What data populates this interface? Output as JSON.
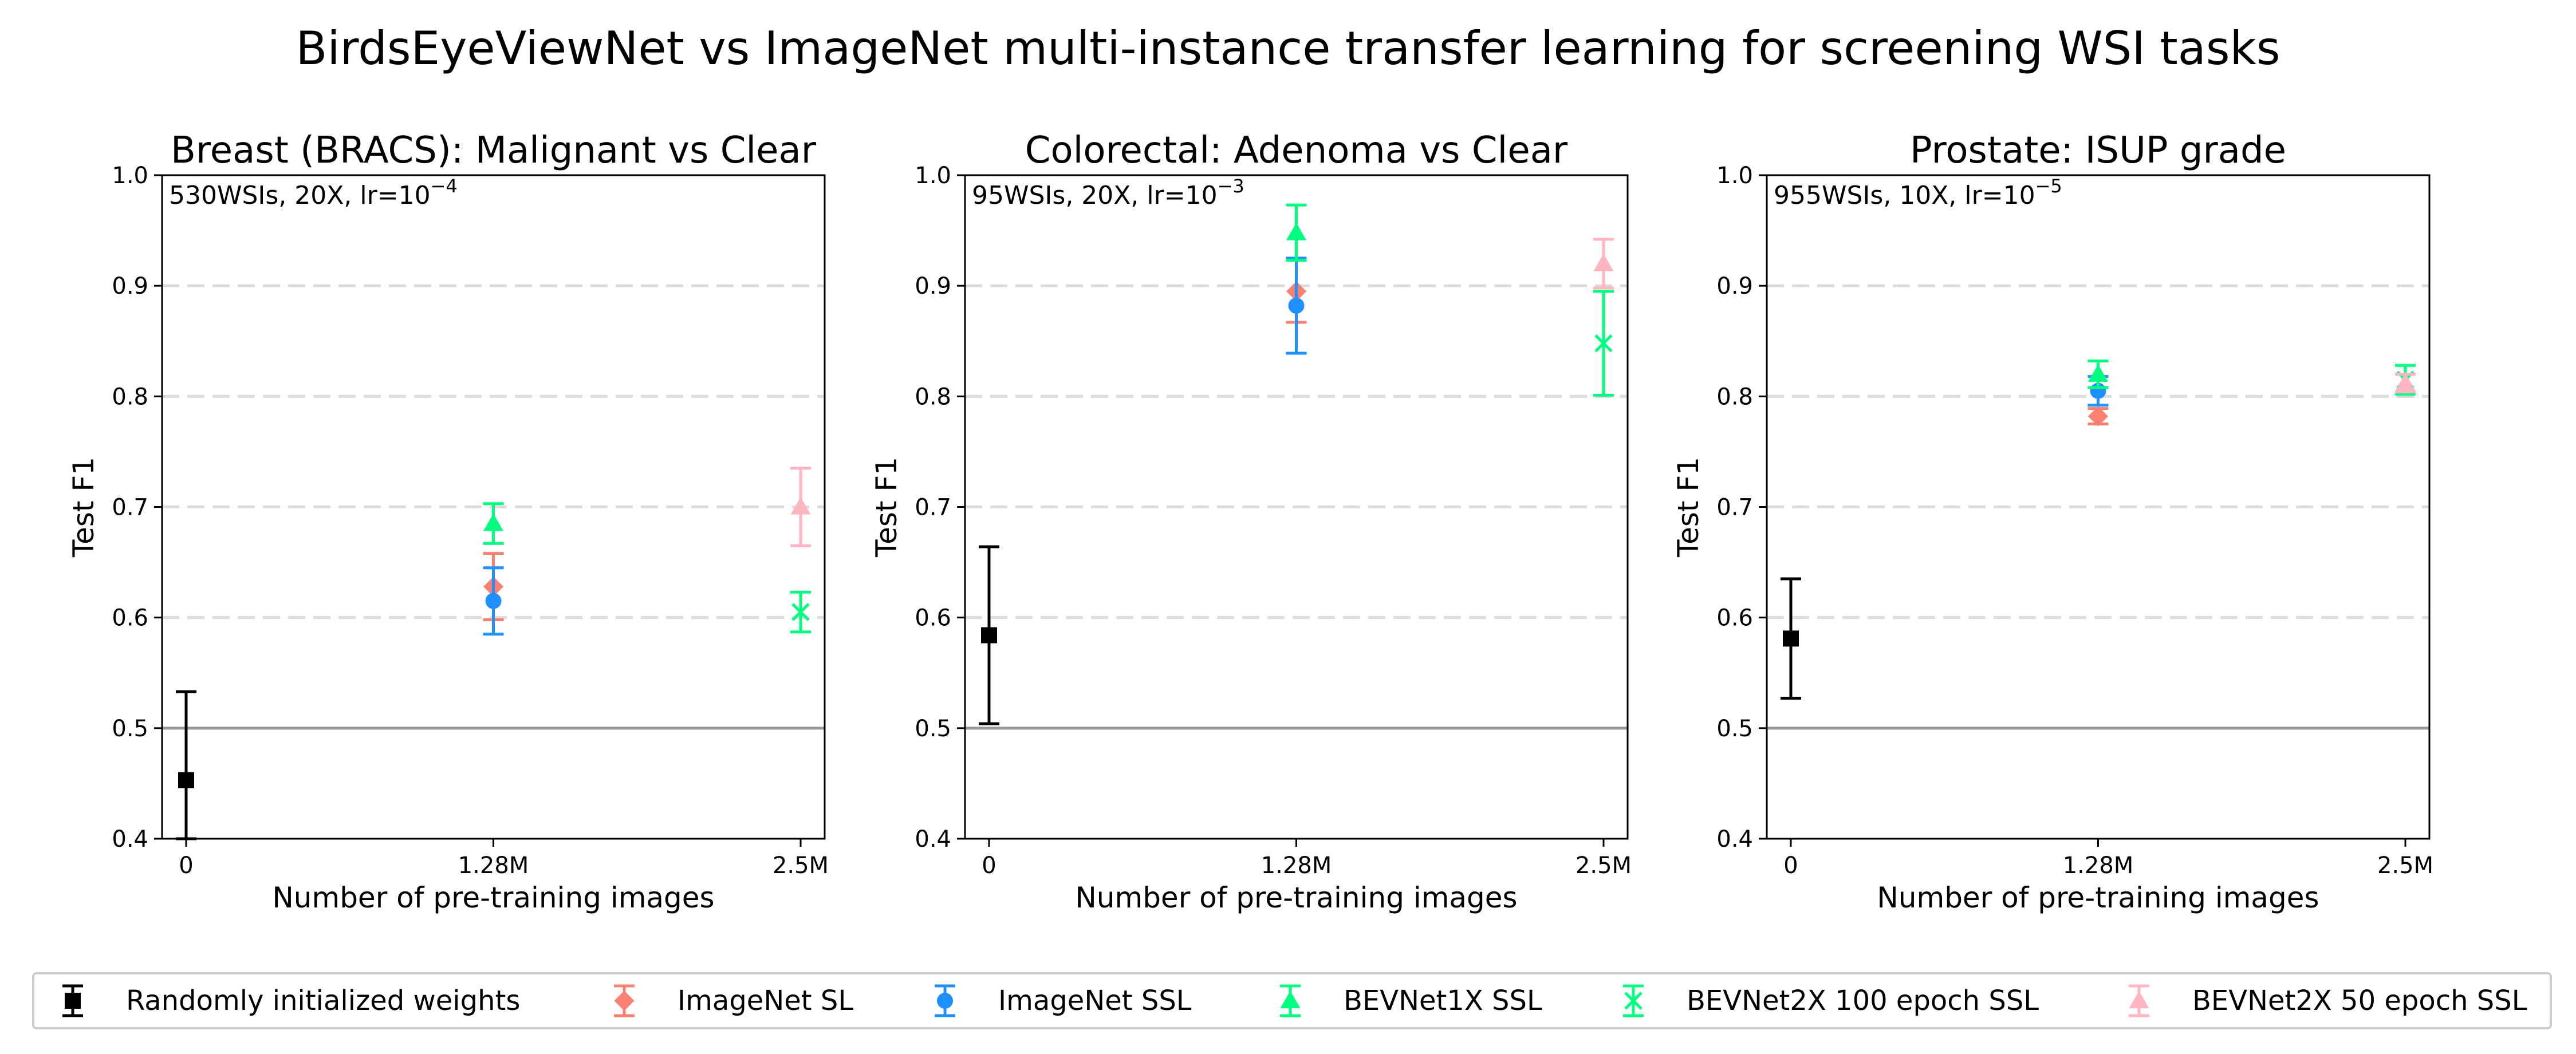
{
  "title": "BirdsEyeViewNet vs ImageNet multi-instance transfer learning for screening WSI tasks",
  "series_styles": [
    {
      "name": "Randomly initialized weights",
      "color": "#000000",
      "marker": "square"
    },
    {
      "name": "ImageNet SL",
      "color": "#fa8072",
      "marker": "diamond"
    },
    {
      "name": "ImageNet SSL",
      "color": "#1e90ff",
      "marker": "circle"
    },
    {
      "name": "BEVNet1X SSL",
      "color": "#00ff7f",
      "marker": "triangle"
    },
    {
      "name": "BEVNet2X 100 epoch SSL",
      "color": "#00ff7f",
      "marker": "x"
    },
    {
      "name": "BEVNet2X 50 epoch SSL",
      "color": "#ffb6c1",
      "marker": "triangle"
    }
  ],
  "chart_data": [
    {
      "type": "scatter",
      "title": "Breast (BRACS): Malignant vs Clear",
      "annotation": {
        "prefix": "530WSIs, 20X, lr=10",
        "exponent": "−4"
      },
      "xlabel": "Number of pre-training images",
      "ylabel": "Test F1",
      "xticks": [
        "0",
        "1.28M",
        "2.5M"
      ],
      "yticks": [
        "0.4",
        "0.5",
        "0.6",
        "0.7",
        "0.8",
        "0.9",
        "1.0"
      ],
      "ylim": [
        0.4,
        1.0
      ],
      "grid": "horizontal dashed at 0.6, 0.7, 0.8, 0.9",
      "reference_line": 0.5,
      "series": [
        {
          "name": "Randomly initialized weights",
          "x": "0",
          "y": 0.453,
          "err": 0.08
        },
        {
          "name": "ImageNet SL",
          "x": "1.28M",
          "y": 0.628,
          "err": 0.03
        },
        {
          "name": "ImageNet SSL",
          "x": "1.28M",
          "y": 0.615,
          "err": 0.03
        },
        {
          "name": "BEVNet1X SSL",
          "x": "1.28M",
          "y": 0.685,
          "err": 0.018
        },
        {
          "name": "BEVNet2X 100 epoch SSL",
          "x": "2.5M",
          "y": 0.605,
          "err": 0.018
        },
        {
          "name": "BEVNet2X 50 epoch SSL",
          "x": "2.5M",
          "y": 0.7,
          "err": 0.035
        }
      ]
    },
    {
      "type": "scatter",
      "title": "Colorectal: Adenoma vs Clear",
      "annotation": {
        "prefix": "95WSIs, 20X, lr=10",
        "exponent": "−3"
      },
      "xlabel": "Number of pre-training images",
      "ylabel": "Test F1",
      "xticks": [
        "0",
        "1.28M",
        "2.5M"
      ],
      "yticks": [
        "0.4",
        "0.5",
        "0.6",
        "0.7",
        "0.8",
        "0.9",
        "1.0"
      ],
      "ylim": [
        0.4,
        1.0
      ],
      "grid": "horizontal dashed at 0.6, 0.7, 0.8, 0.9",
      "reference_line": 0.5,
      "series": [
        {
          "name": "Randomly initialized weights",
          "x": "0",
          "y": 0.584,
          "err": 0.08
        },
        {
          "name": "ImageNet SL",
          "x": "1.28M",
          "y": 0.895,
          "err": 0.028
        },
        {
          "name": "ImageNet SSL",
          "x": "1.28M",
          "y": 0.882,
          "err": 0.043
        },
        {
          "name": "BEVNet1X SSL",
          "x": "1.28M",
          "y": 0.948,
          "err": 0.025
        },
        {
          "name": "BEVNet2X 100 epoch SSL",
          "x": "2.5M",
          "y": 0.848,
          "err": 0.047
        },
        {
          "name": "BEVNet2X 50 epoch SSL",
          "x": "2.5M",
          "y": 0.92,
          "err": 0.022
        }
      ]
    },
    {
      "type": "scatter",
      "title": "Prostate: ISUP grade",
      "annotation": {
        "prefix": "955WSIs, 10X, lr=10",
        "exponent": "−5"
      },
      "xlabel": "Number of pre-training images",
      "ylabel": "Test F1",
      "xticks": [
        "0",
        "1.28M",
        "2.5M"
      ],
      "yticks": [
        "0.4",
        "0.5",
        "0.6",
        "0.7",
        "0.8",
        "0.9",
        "1.0"
      ],
      "ylim": [
        0.4,
        1.0
      ],
      "grid": "horizontal dashed at 0.6, 0.7, 0.8, 0.9",
      "reference_line": 0.5,
      "series": [
        {
          "name": "Randomly initialized weights",
          "x": "0",
          "y": 0.581,
          "err": 0.054
        },
        {
          "name": "ImageNet SL",
          "x": "1.28M",
          "y": 0.782,
          "err": 0.007
        },
        {
          "name": "ImageNet SSL",
          "x": "1.28M",
          "y": 0.805,
          "err": 0.013
        },
        {
          "name": "BEVNet1X SSL",
          "x": "1.28M",
          "y": 0.82,
          "err": 0.012
        },
        {
          "name": "BEVNet2X 100 epoch SSL",
          "x": "2.5M",
          "y": 0.815,
          "err": 0.013
        },
        {
          "name": "BEVNet2X 50 epoch SSL",
          "x": "2.5M",
          "y": 0.812,
          "err": 0.008
        }
      ]
    }
  ],
  "legend": {
    "placement": "bottom",
    "entries": [
      "Randomly initialized weights",
      "ImageNet SL",
      "ImageNet SSL",
      "BEVNet1X SSL",
      "BEVNet2X 100 epoch SSL",
      "BEVNet2X 50 epoch SSL"
    ]
  }
}
